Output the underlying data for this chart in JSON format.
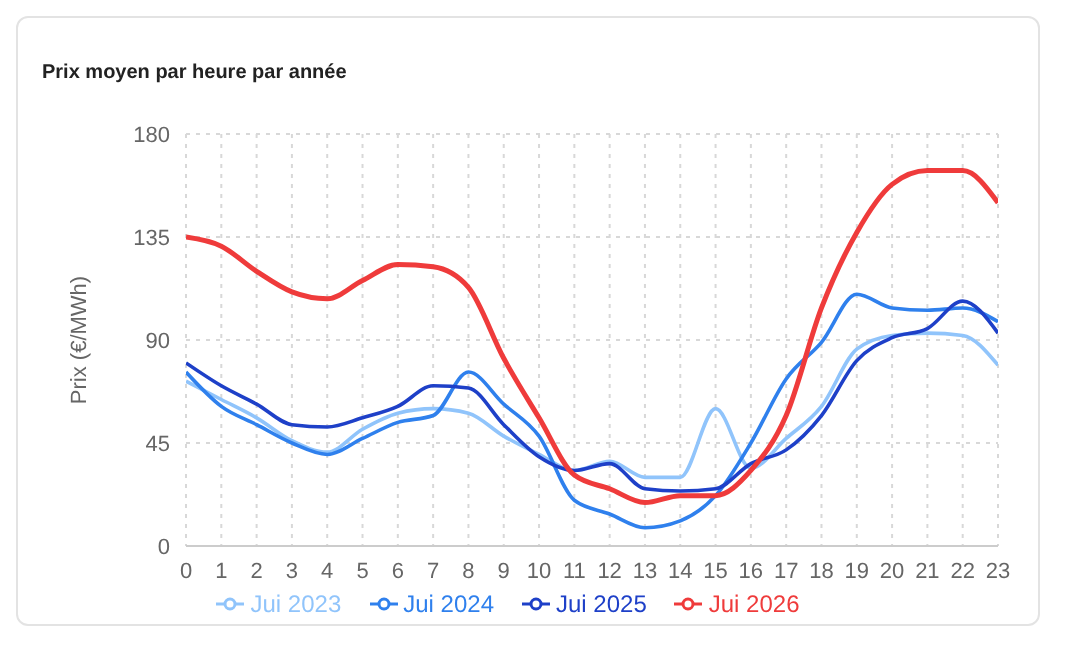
{
  "chart_data": {
    "type": "line",
    "title": "Prix moyen par heure par année",
    "ylabel": "Prix (€/MWh)",
    "x": [
      0,
      1,
      2,
      3,
      4,
      5,
      6,
      7,
      8,
      9,
      10,
      11,
      12,
      13,
      14,
      15,
      16,
      17,
      18,
      19,
      20,
      21,
      22,
      23
    ],
    "xlim": [
      0,
      23
    ],
    "xticks": [
      0,
      1,
      2,
      3,
      4,
      5,
      6,
      7,
      8,
      9,
      10,
      11,
      12,
      13,
      14,
      15,
      16,
      17,
      18,
      19,
      20,
      21,
      22,
      23
    ],
    "ylim": [
      0,
      180
    ],
    "yticks": [
      0,
      45,
      90,
      135,
      180
    ],
    "grid": true,
    "legend": "bottom",
    "series": [
      {
        "name": "Jui 2023",
        "color": "#90c4fb",
        "values": [
          72,
          64,
          56,
          46,
          41,
          51,
          58,
          60,
          58,
          48,
          40,
          33,
          37,
          30,
          30,
          60,
          34,
          47,
          61,
          86,
          92,
          93,
          92,
          79
        ]
      },
      {
        "name": "Jui 2024",
        "color": "#2f80ed",
        "values": [
          76,
          61,
          53,
          45,
          40,
          47,
          54,
          57,
          76,
          62,
          48,
          20,
          14,
          8,
          11,
          22,
          45,
          73,
          89,
          110,
          104,
          103,
          104,
          98
        ]
      },
      {
        "name": "Jui 2025",
        "color": "#1e40c8",
        "values": [
          80,
          70,
          62,
          53,
          52,
          56,
          61,
          70,
          69,
          53,
          39,
          33,
          36,
          25,
          24,
          25,
          36,
          42,
          57,
          81,
          91,
          95,
          107,
          93
        ]
      },
      {
        "name": "Jui 2026",
        "color": "#ef3b3b",
        "values": [
          135,
          131,
          120,
          111,
          108,
          116,
          123,
          122,
          113,
          82,
          56,
          31,
          25,
          19,
          22,
          22,
          33,
          57,
          104,
          137,
          158,
          164,
          164,
          150
        ]
      }
    ]
  }
}
